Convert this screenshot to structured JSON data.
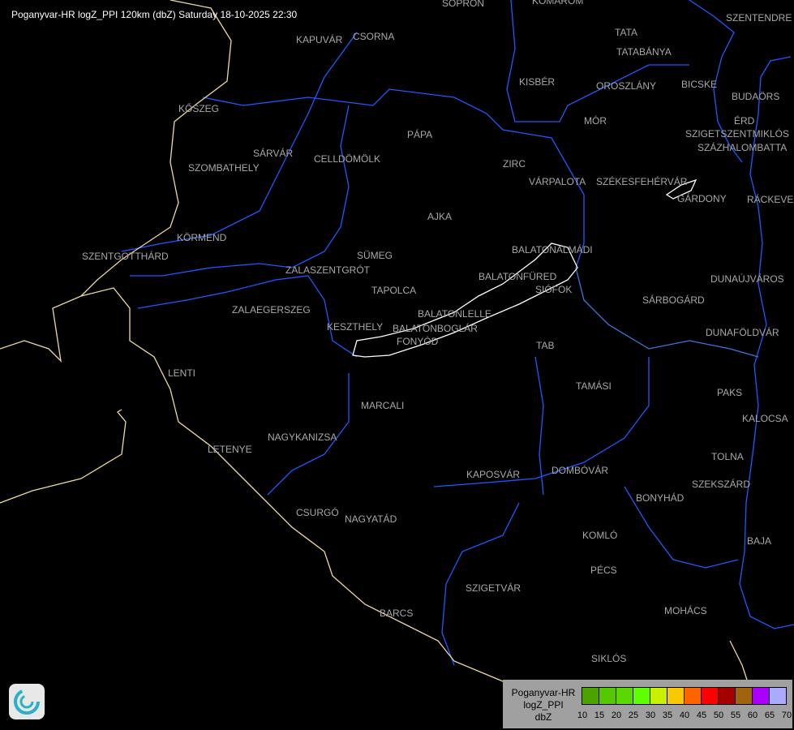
{
  "title": "Poganyvar-HR logZ_PPI 120km (dbZ) Saturday 18-10-2025 22:30",
  "legend": {
    "radar": "Poganyvar-HR",
    "product": "logZ_PPI",
    "unit": "dbZ",
    "ticks": [
      "10",
      "15",
      "20",
      "25",
      "30",
      "35",
      "40",
      "45",
      "50",
      "55",
      "60",
      "65",
      "70"
    ],
    "colors": [
      "#4ca300",
      "#55c800",
      "#5ad800",
      "#5fff00",
      "#c8f000",
      "#f8c800",
      "#ff6400",
      "#ff0000",
      "#a50000",
      "#a0640f",
      "#aa00ff",
      "#aaaaff"
    ]
  },
  "colors": {
    "river": "#1e5aff",
    "border": "#f0d8a0",
    "outline": "#ffffff",
    "label": "#a8a8a8"
  },
  "cities": [
    {
      "name": "SOPRON"
    },
    {
      "name": "KOMÁROM"
    },
    {
      "name": "SZENTENDRE"
    },
    {
      "name": "KAPUVÁR"
    },
    {
      "name": "CSORNA"
    },
    {
      "name": "TATA"
    },
    {
      "name": "TATABÁNYA"
    },
    {
      "name": "KISBÉR"
    },
    {
      "name": "OROSZLÁNY"
    },
    {
      "name": "BICSKE"
    },
    {
      "name": "BUDAÖRS"
    },
    {
      "name": "ÉRD"
    },
    {
      "name": "SZIGETSZENTMIKLÓS"
    },
    {
      "name": "SZÁZHALOMBATTA"
    },
    {
      "name": "KŐSZEG"
    },
    {
      "name": "PÁPA"
    },
    {
      "name": "MÓR"
    },
    {
      "name": "ZIRC"
    },
    {
      "name": "CELLDÖMÖLK"
    },
    {
      "name": "SÁRVÁR"
    },
    {
      "name": "SZOMBATHELY"
    },
    {
      "name": "VÁRPALOTA"
    },
    {
      "name": "SZÉKESFEHÉRVÁR"
    },
    {
      "name": "GÁRDONY"
    },
    {
      "name": "RÁCKEVE"
    },
    {
      "name": "AJKA"
    },
    {
      "name": "KÖRMEND"
    },
    {
      "name": "SZENTGOTTHÁRD"
    },
    {
      "name": "SÜMEG"
    },
    {
      "name": "ZALASZENTGRÓT"
    },
    {
      "name": "BALATONALMÁDI"
    },
    {
      "name": "BALATONFÜRED"
    },
    {
      "name": "SIÓFOK"
    },
    {
      "name": "DUNAÚJVÁROS"
    },
    {
      "name": "TAPOLCA"
    },
    {
      "name": "ZALAEGERSZEG"
    },
    {
      "name": "SÁRBOGÁRD"
    },
    {
      "name": "KESZTHELY"
    },
    {
      "name": "BALATONLELLE"
    },
    {
      "name": "BALATONBOGLÁR"
    },
    {
      "name": "FONYÓD"
    },
    {
      "name": "DUNAFÖLDVÁR"
    },
    {
      "name": "TAB"
    },
    {
      "name": "LENTI"
    },
    {
      "name": "TAMÁSI"
    },
    {
      "name": "PAKS"
    },
    {
      "name": "MARCALI"
    },
    {
      "name": "KALOCSA"
    },
    {
      "name": "NAGYKANIZSA"
    },
    {
      "name": "LETENYE"
    },
    {
      "name": "TOLNA"
    },
    {
      "name": "KAPOSVÁR"
    },
    {
      "name": "DOMBÓVÁR"
    },
    {
      "name": "SZEKSZÁRD"
    },
    {
      "name": "BONYHÁD"
    },
    {
      "name": "CSURGÓ"
    },
    {
      "name": "NAGYATÁD"
    },
    {
      "name": "KOMLÓ"
    },
    {
      "name": "BAJA"
    },
    {
      "name": "PÉCS"
    },
    {
      "name": "SZIGETVÁR"
    },
    {
      "name": "MOHÁCS"
    },
    {
      "name": "BARCS"
    },
    {
      "name": "SIKLÓS"
    }
  ]
}
